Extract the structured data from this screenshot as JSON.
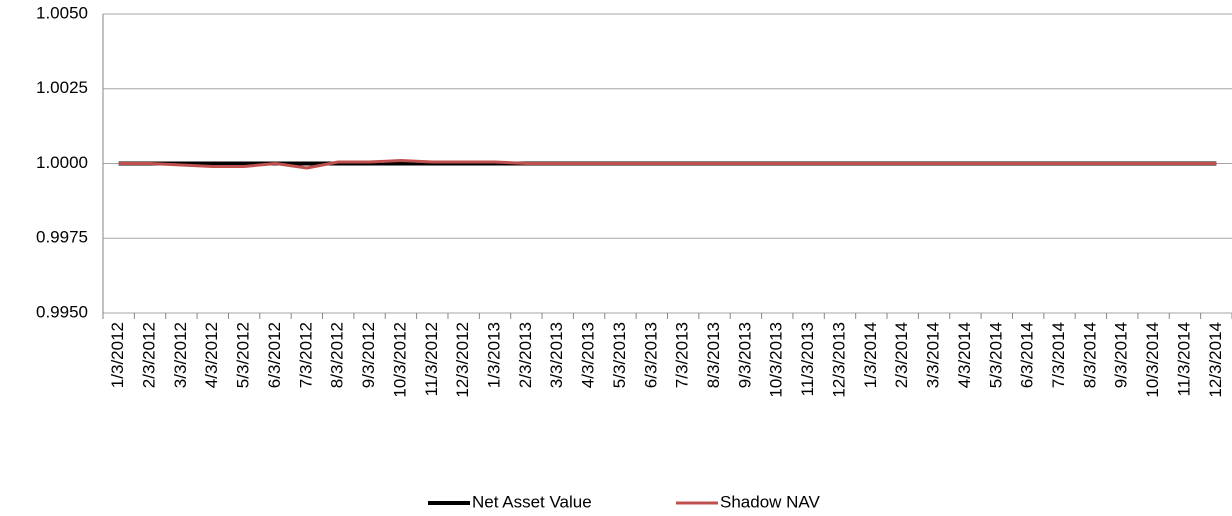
{
  "chart_data": {
    "type": "line",
    "categories": [
      "1/3/2012",
      "2/3/2012",
      "3/3/2012",
      "4/3/2012",
      "5/3/2012",
      "6/3/2012",
      "7/3/2012",
      "8/3/2012",
      "9/3/2012",
      "10/3/2012",
      "11/3/2012",
      "12/3/2012",
      "1/3/2013",
      "2/3/2013",
      "3/3/2013",
      "4/3/2013",
      "5/3/2013",
      "6/3/2013",
      "7/3/2013",
      "8/3/2013",
      "9/3/2013",
      "10/3/2013",
      "11/3/2013",
      "12/3/2013",
      "1/3/2014",
      "2/3/2014",
      "3/3/2014",
      "4/3/2014",
      "5/3/2014",
      "6/3/2014",
      "7/3/2014",
      "8/3/2014",
      "9/3/2014",
      "10/3/2014",
      "11/3/2014",
      "12/3/2014"
    ],
    "series": [
      {
        "name": "Net Asset Value",
        "color": "#000000",
        "values": [
          1,
          1,
          1,
          1,
          1,
          1,
          1,
          1,
          1,
          1,
          1,
          1,
          1,
          1,
          1,
          1,
          1,
          1,
          1,
          1,
          1,
          1,
          1,
          1,
          1,
          1,
          1,
          1,
          1,
          1,
          1,
          1,
          1,
          1,
          1,
          1
        ]
      },
      {
        "name": "Shadow NAV",
        "color": "#c0504d",
        "values": [
          1,
          1,
          0.99995,
          0.9999,
          0.9999,
          1,
          0.99985,
          1.00005,
          1.00005,
          1.0001,
          1.00005,
          1.00005,
          1.00005,
          1,
          1,
          1,
          1,
          1,
          1,
          1,
          1,
          1,
          1,
          1,
          1,
          1,
          1,
          1,
          1,
          1,
          1,
          1,
          1,
          1,
          1,
          1
        ]
      }
    ],
    "ylim": [
      0.995,
      1.005
    ],
    "yticks": [
      {
        "value": 0.995,
        "label": "0.9950"
      },
      {
        "value": 0.9975,
        "label": "0.9975"
      },
      {
        "value": 1,
        "label": "1.0000"
      },
      {
        "value": 1.0025,
        "label": "1.0025"
      },
      {
        "value": 1.005,
        "label": "1.0050"
      }
    ],
    "grid": true
  }
}
